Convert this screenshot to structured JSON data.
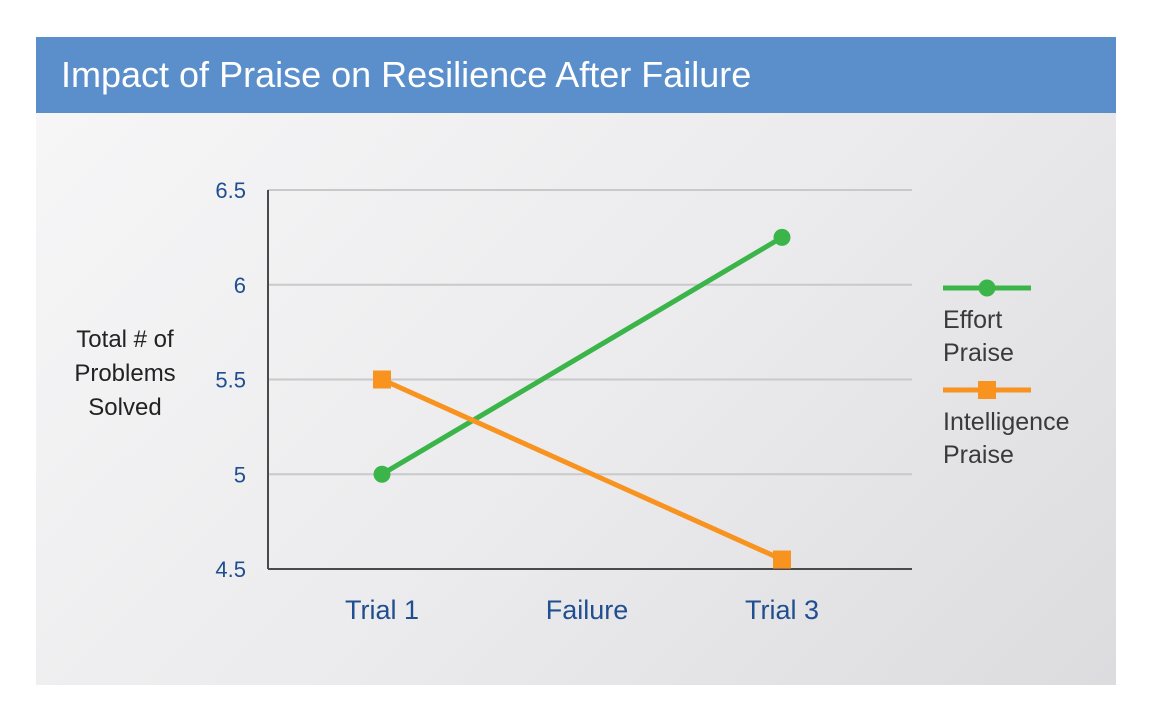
{
  "header": {
    "title": "Impact of Praise on Resilience After Failure"
  },
  "chart_data": {
    "type": "line",
    "title": "Impact of Praise on Resilience After Failure",
    "ylabel_lines": [
      "Total # of",
      "Problems",
      "Solved"
    ],
    "xlabel": "",
    "categories": [
      "Trial 1",
      "Failure",
      "Trial 3"
    ],
    "y_ticks": [
      "4.5",
      "5",
      "5.5",
      "6",
      "6.5"
    ],
    "ylim": [
      4.5,
      6.5
    ],
    "grid": true,
    "legend_position": "right",
    "series": [
      {
        "name_lines": [
          "Effort",
          "Praise"
        ],
        "color": "#3bb54a",
        "marker": "circle",
        "points": [
          {
            "x": "Trial 1",
            "y": 5.0
          },
          {
            "x": "Trial 3",
            "y": 6.25
          }
        ]
      },
      {
        "name_lines": [
          "Intelligence",
          "Praise"
        ],
        "color": "#f7931e",
        "marker": "square",
        "points": [
          {
            "x": "Trial 1",
            "y": 5.5
          },
          {
            "x": "Trial 3",
            "y": 4.55
          }
        ]
      }
    ]
  }
}
